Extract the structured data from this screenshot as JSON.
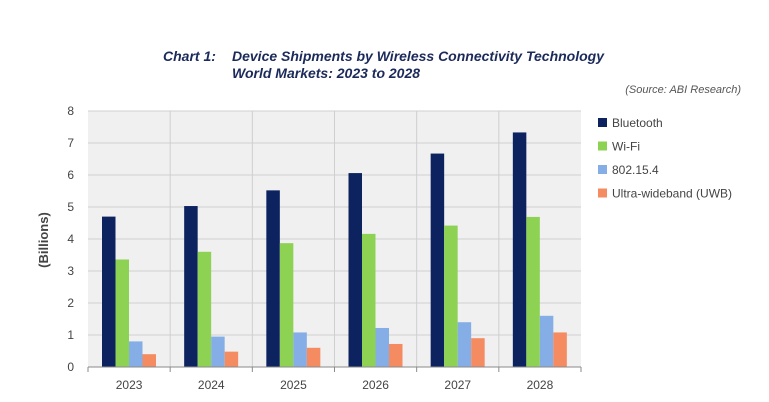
{
  "title": {
    "prefix": "Chart 1:",
    "line1": "Device Shipments by Wireless Connectivity Technology",
    "line2": "World Markets: 2023 to 2028"
  },
  "source": "(Source: ABI Research)",
  "chart_data": {
    "type": "bar",
    "categories": [
      "2023",
      "2024",
      "2025",
      "2026",
      "2027",
      "2028"
    ],
    "series": [
      {
        "name": "Bluetooth",
        "color": "#0d2360",
        "values": [
          4.7,
          5.03,
          5.52,
          6.06,
          6.67,
          7.33
        ]
      },
      {
        "name": "Wi-Fi",
        "color": "#8ed254",
        "values": [
          3.36,
          3.6,
          3.87,
          4.16,
          4.42,
          4.69
        ]
      },
      {
        "name": "802.15.4",
        "color": "#86aee6",
        "values": [
          0.8,
          0.95,
          1.08,
          1.22,
          1.4,
          1.6
        ]
      },
      {
        "name": "Ultra-wideband (UWB)",
        "color": "#f58b60",
        "values": [
          0.4,
          0.48,
          0.6,
          0.72,
          0.9,
          1.08
        ]
      }
    ],
    "ylabel": "(Billions)",
    "xlabel": "",
    "ylim": [
      0,
      8
    ],
    "yticks": [
      "0",
      "1",
      "2",
      "3",
      "4",
      "5",
      "6",
      "7",
      "8"
    ],
    "grid": true,
    "legend_position": "right"
  }
}
